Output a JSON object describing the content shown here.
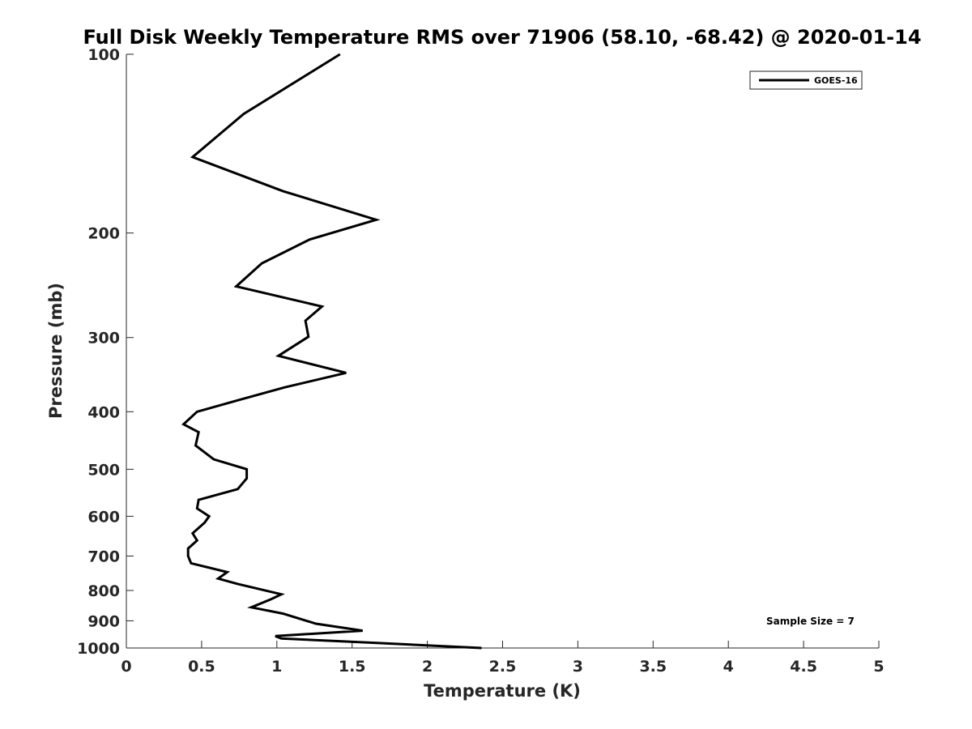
{
  "chart_data": {
    "type": "line",
    "title": "Full Disk Weekly Temperature RMS over 71906 (58.10, -68.42) @ 2020-01-14",
    "xlabel": "Temperature (K)",
    "ylabel": "Pressure (mb)",
    "xlim": [
      0,
      5
    ],
    "ylim": [
      100,
      1000
    ],
    "y_scale": "log",
    "y_reversed": true,
    "x_ticks": [
      0,
      0.5,
      1,
      1.5,
      2,
      2.5,
      3,
      3.5,
      4,
      4.5,
      5
    ],
    "x_tick_labels": [
      "0",
      "0.5",
      "1",
      "1.5",
      "2",
      "2.5",
      "3",
      "3.5",
      "4",
      "4.5",
      "5"
    ],
    "y_ticks": [
      100,
      200,
      300,
      400,
      500,
      600,
      700,
      800,
      900,
      1000
    ],
    "y_tick_labels": [
      "100",
      "200",
      "300",
      "400",
      "500",
      "600",
      "700",
      "800",
      "900",
      "1000"
    ],
    "grid": false,
    "legend_position": "top-right",
    "series": [
      {
        "name": "GOES-16",
        "color": "#000000",
        "points": [
          [
            1.42,
            100
          ],
          [
            0.78,
            126
          ],
          [
            0.44,
            149
          ],
          [
            1.04,
            170
          ],
          [
            1.66,
            190
          ],
          [
            1.22,
            205
          ],
          [
            0.9,
            225
          ],
          [
            0.73,
            246
          ],
          [
            1.3,
            266
          ],
          [
            1.19,
            281
          ],
          [
            1.21,
            299
          ],
          [
            1.01,
            322
          ],
          [
            1.46,
            344
          ],
          [
            1.05,
            364
          ],
          [
            0.75,
            382
          ],
          [
            0.47,
            400
          ],
          [
            0.38,
            420
          ],
          [
            0.48,
            433
          ],
          [
            0.46,
            456
          ],
          [
            0.58,
            481
          ],
          [
            0.8,
            500
          ],
          [
            0.8,
            518
          ],
          [
            0.74,
            540
          ],
          [
            0.48,
            563
          ],
          [
            0.47,
            582
          ],
          [
            0.55,
            600
          ],
          [
            0.52,
            615
          ],
          [
            0.44,
            641
          ],
          [
            0.47,
            659
          ],
          [
            0.41,
            680
          ],
          [
            0.41,
            700
          ],
          [
            0.43,
            720
          ],
          [
            0.67,
            745
          ],
          [
            0.61,
            764
          ],
          [
            0.74,
            780
          ],
          [
            1.03,
            812
          ],
          [
            0.96,
            828
          ],
          [
            0.83,
            854
          ],
          [
            1.04,
            875
          ],
          [
            1.26,
            910
          ],
          [
            1.57,
            935
          ],
          [
            0.99,
            955
          ],
          [
            1.03,
            964
          ],
          [
            1.68,
            981
          ],
          [
            2.36,
            1000
          ]
        ]
      }
    ],
    "annotations": [
      "Sample Size = 7"
    ]
  }
}
